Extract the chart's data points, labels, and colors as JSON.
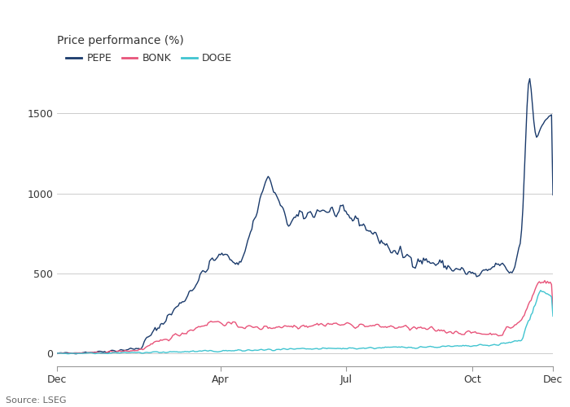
{
  "title": "Price performance (%)",
  "source": "Source: LSEG",
  "colors": {
    "PEPE": "#1a3a6b",
    "BONK": "#e8547a",
    "DOGE": "#40c4d0"
  },
  "legend_labels": [
    "PEPE",
    "BONK",
    "DOGE"
  ],
  "x_ticks": [
    "Dec",
    "Apr",
    "Jul",
    "Oct",
    "Dec"
  ],
  "x_tick_positions": [
    0,
    120,
    212,
    305,
    364
  ],
  "y_ticks": [
    0,
    500,
    1000,
    1500
  ],
  "ylim": [
    -80,
    1750
  ],
  "xlim": [
    0,
    364
  ],
  "background_color": "#ffffff",
  "grid_color": "#cccccc",
  "text_color": "#333333",
  "source_color": "#666666",
  "title_fontsize": 10,
  "tick_fontsize": 9,
  "legend_fontsize": 9
}
